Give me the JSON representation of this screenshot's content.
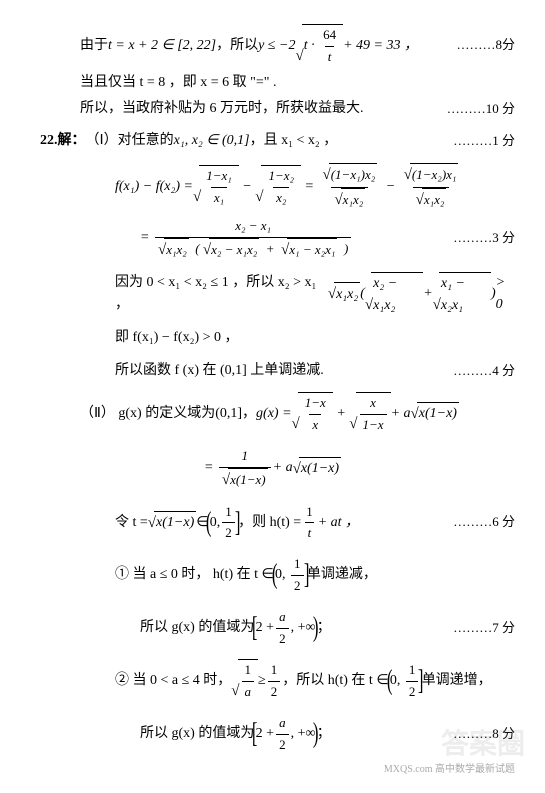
{
  "p1": {
    "prefix": "由于",
    "var": "t = x + 2 ∈ [2, 22]",
    "mid": "，所以",
    "y": "y ≤ −2",
    "sqrt_num": "64",
    "sqrt_den": "t",
    "tail": " + 49 = 33 ，",
    "score": "………8分"
  },
  "p2": {
    "l1": "当且仅当 t = 8 ，即 x = 6 取 \"=\" .",
    "l2": "所以，当政府补贴为 6 万元时，所获收益最大.",
    "score": "………10 分"
  },
  "q22": {
    "label": "22.解：",
    "part1_label": "（Ⅰ）",
    "part1_text": "对任意的",
    "vars": "x₁, x₂ ∈ (0,1]",
    "cond": "，且 x₁ < x₂ ，",
    "score1": "………1 分"
  },
  "eq1": {
    "lhs": "f(x₁) − f(x₂) = ",
    "t1n": "1−x₁",
    "t1d": "x₁",
    "t2n": "1−x₂",
    "t2d": "x₂",
    "t3tn": "(1−x₁)x₂",
    "t3bd": "x₁x₂",
    "t4tn": "(1−x₂)x₁",
    "t4bd": "x₁x₂",
    "score": "………3 分"
  },
  "eq2": {
    "num": "x₂ − x₁",
    "den_a": "x₁x₂",
    "den_b": "x₂ − x₁x₂",
    "den_c": "x₁ − x₂x₁"
  },
  "p3": {
    "a": "因为 0 < x₁ < x₂ ≤ 1 ，所以 x₂ > x₁ ，",
    "b": "x₁x₂",
    "c": "x₂ − x₁x₂",
    "d": "x₁ − x₂x₁",
    "tail": " > 0"
  },
  "p4": "即 f(x₁) − f(x₂) > 0 ，",
  "p5": {
    "t": "所以函数 f (x) 在 (0,1] 上单调递减.",
    "score": "………4 分"
  },
  "part2": {
    "label": "（Ⅱ）",
    "a": "g(x) 的定义域为(0,1]，",
    "g": "g(x) = ",
    "t1n": "1−x",
    "t1d": "x",
    "t2n": "x",
    "t2d": "1−x",
    "plus": " + a",
    "sq": "x(1−x)"
  },
  "eq3": {
    "num": "1",
    "den": "x(1−x)",
    "tail": " + a",
    "sq": "x(1−x)"
  },
  "p6": {
    "a": "令 t = ",
    "sq": "x(1−x)",
    "b": " ∈ ",
    "r": "0, ",
    "half_n": "1",
    "half_d": "2",
    "c": "，则 h(t) = ",
    "fn": "1",
    "fd": "t",
    "d": " + at  ，",
    "score": "………6 分"
  },
  "p7": {
    "a": "①  当 a ≤ 0 时， h(t) 在 t ∈ ",
    "half_n": "1",
    "half_d": "2",
    "b": " 单调递减，"
  },
  "p8": {
    "a": "所以 g(x) 的值域为 ",
    "b": "2 + ",
    "fn": "a",
    "fd": "2",
    "c": ", +∞",
    "d": "；",
    "score": "………7 分"
  },
  "p9": {
    "a": "②  当 0 < a ≤ 4 时，",
    "fn": "1",
    "fd": "a",
    "b": " ≥ ",
    "hn": "1",
    "hd": "2",
    "c": "，所以 h(t) 在 t ∈ ",
    "d": " 单调递增，"
  },
  "p10": {
    "a": "所以 g(x) 的值域为 ",
    "b": "2 + ",
    "fn": "a",
    "fd": "2",
    "c": ", +∞",
    "d": "；",
    "score": "………8 分"
  },
  "wm": "答案圈",
  "subwm": "MXQS.com  高中数学最新试题"
}
